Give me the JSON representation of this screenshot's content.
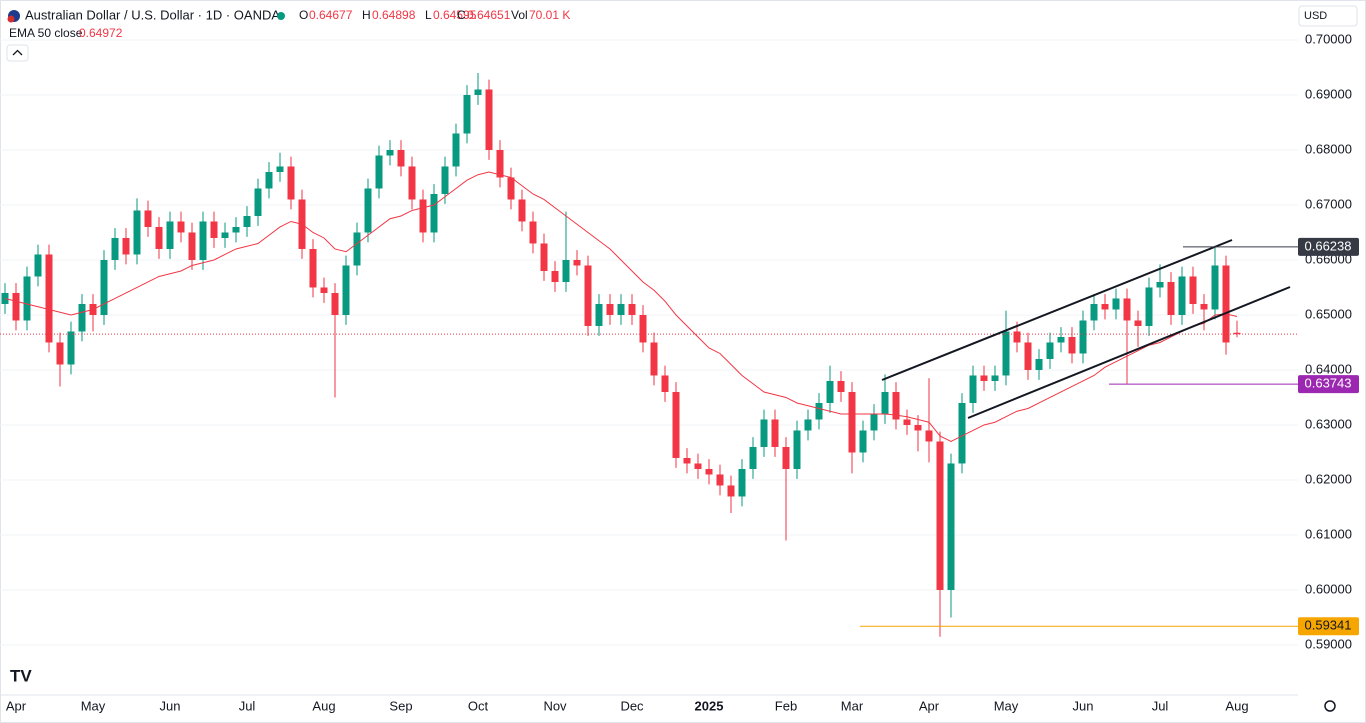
{
  "chart_data": {
    "type": "candlestick",
    "title": "Australian Dollar / U.S. Dollar · 1D · OANDA",
    "currency": "USD",
    "ohlc_labels": {
      "open": "O",
      "high": "H",
      "low": "L",
      "close": "C",
      "volume": "Vol"
    },
    "volume": "70.01 K",
    "up_color": "#089981",
    "down_color": "#f23645",
    "categories": [
      null,
      "Apr",
      null,
      null,
      null,
      null,
      null,
      null,
      "May",
      null,
      null,
      null,
      null,
      null,
      null,
      "Jun",
      null,
      null,
      null,
      null,
      null,
      null,
      "Jul",
      null,
      null,
      null,
      null,
      null,
      null,
      "Aug",
      null,
      null,
      null,
      null,
      null,
      null,
      "Sep",
      null,
      null,
      null,
      null,
      null,
      null,
      "Oct",
      null,
      null,
      null,
      null,
      null,
      null,
      "Nov",
      null,
      null,
      null,
      null,
      null,
      null,
      "Dec",
      null,
      null,
      null,
      null,
      null,
      null,
      "2025",
      null,
      null,
      null,
      null,
      null,
      null,
      "Feb",
      null,
      null,
      null,
      null,
      null,
      "Mar",
      null,
      null,
      null,
      null,
      null,
      null,
      "Apr",
      null,
      null,
      null,
      null,
      null,
      null,
      "May",
      null,
      null,
      null,
      null,
      null,
      null,
      "Jun",
      null,
      null,
      null,
      null,
      null,
      null,
      "Jul",
      null,
      null,
      null,
      null,
      null,
      null,
      "Aug"
    ],
    "open": [
      0.652,
      0.654,
      0.649,
      0.657,
      0.661,
      0.645,
      0.641,
      0.647,
      0.652,
      0.65,
      0.66,
      0.664,
      0.661,
      0.669,
      0.666,
      0.662,
      0.667,
      0.665,
      0.66,
      0.667,
      0.664,
      0.665,
      0.666,
      0.668,
      0.673,
      0.676,
      0.677,
      0.671,
      0.662,
      0.655,
      0.654,
      0.65,
      0.659,
      0.665,
      0.673,
      0.679,
      0.68,
      0.677,
      0.671,
      0.665,
      0.672,
      0.677,
      0.683,
      0.69,
      0.691,
      0.68,
      0.675,
      0.671,
      0.667,
      0.663,
      0.658,
      0.656,
      0.66,
      0.659,
      0.648,
      0.652,
      0.65,
      0.652,
      0.65,
      0.645,
      0.639,
      0.636,
      0.624,
      0.623,
      0.622,
      0.621,
      0.619,
      0.617,
      0.622,
      0.626,
      0.631,
      0.626,
      0.622,
      0.629,
      0.631,
      0.634,
      0.638,
      0.636,
      0.625,
      0.629,
      0.632,
      0.636,
      0.631,
      0.63,
      0.629,
      0.627,
      0.6,
      0.623,
      0.634,
      0.639,
      0.638,
      0.639,
      0.647,
      0.645,
      0.64,
      0.642,
      0.645,
      0.646,
      0.643,
      0.649,
      0.652,
      0.651,
      0.653,
      0.649,
      0.648,
      0.655,
      0.656,
      0.65,
      0.657,
      0.652,
      0.651,
      0.659,
      0.64677
    ],
    "high": [
      0.6558,
      0.6558,
      0.6588,
      0.6628,
      0.6628,
      0.6468,
      0.6488,
      0.6538,
      0.6538,
      0.6618,
      0.6658,
      0.6658,
      0.6712,
      0.6708,
      0.6678,
      0.6688,
      0.6688,
      0.6668,
      0.6688,
      0.6688,
      0.6668,
      0.6678,
      0.6698,
      0.6748,
      0.6778,
      0.6795,
      0.6788,
      0.6728,
      0.6638,
      0.6568,
      0.6558,
      0.6608,
      0.6668,
      0.6748,
      0.6808,
      0.6818,
      0.6818,
      0.6788,
      0.6728,
      0.6738,
      0.6788,
      0.6848,
      0.6918,
      0.694,
      0.6928,
      0.6818,
      0.6768,
      0.6728,
      0.6688,
      0.6648,
      0.6598,
      0.6688,
      0.6618,
      0.6608,
      0.6538,
      0.6538,
      0.6538,
      0.6538,
      0.6518,
      0.6468,
      0.6408,
      0.6378,
      0.6258,
      0.6248,
      0.6238,
      0.6228,
      0.6208,
      0.6238,
      0.6278,
      0.6328,
      0.6328,
      0.6278,
      0.6308,
      0.6328,
      0.6358,
      0.6408,
      0.6398,
      0.6378,
      0.6308,
      0.6338,
      0.6392,
      0.6378,
      0.6328,
      0.6318,
      0.6385,
      0.6288,
      0.6248,
      0.6358,
      0.6408,
      0.6408,
      0.6408,
      0.6508,
      0.6488,
      0.6468,
      0.6438,
      0.6468,
      0.6478,
      0.6478,
      0.6508,
      0.6538,
      0.6538,
      0.6548,
      0.6548,
      0.6508,
      0.6568,
      0.6592,
      0.6578,
      0.6588,
      0.6588,
      0.6538,
      0.6622,
      0.6608,
      0.64898
    ],
    "low": [
      0.6502,
      0.6472,
      0.6472,
      0.6552,
      0.6432,
      0.637,
      0.6392,
      0.6452,
      0.647,
      0.6482,
      0.6582,
      0.6592,
      0.6592,
      0.6642,
      0.6602,
      0.6602,
      0.6632,
      0.6582,
      0.6582,
      0.6622,
      0.6622,
      0.6632,
      0.6642,
      0.6662,
      0.6712,
      0.6742,
      0.6692,
      0.6602,
      0.6532,
      0.6522,
      0.635,
      0.6482,
      0.6572,
      0.6632,
      0.6712,
      0.6772,
      0.6752,
      0.6692,
      0.6632,
      0.6632,
      0.6702,
      0.6752,
      0.6812,
      0.6882,
      0.6782,
      0.6732,
      0.6692,
      0.6652,
      0.6612,
      0.6562,
      0.6542,
      0.6542,
      0.6572,
      0.6462,
      0.6462,
      0.6482,
      0.6482,
      0.6482,
      0.6432,
      0.6372,
      0.6342,
      0.6222,
      0.6212,
      0.6202,
      0.6192,
      0.6172,
      0.614,
      0.6152,
      0.6202,
      0.6242,
      0.6242,
      0.609,
      0.6202,
      0.6272,
      0.6292,
      0.6322,
      0.6342,
      0.6212,
      0.6232,
      0.6272,
      0.6302,
      0.6292,
      0.6282,
      0.6252,
      0.6232,
      0.5915,
      0.595,
      0.6212,
      0.6322,
      0.6362,
      0.6362,
      0.6372,
      0.6432,
      0.6382,
      0.6382,
      0.6402,
      0.6432,
      0.6412,
      0.6412,
      0.6472,
      0.6492,
      0.6492,
      0.6375,
      0.6442,
      0.6462,
      0.6532,
      0.6482,
      0.6482,
      0.6502,
      0.6472,
      0.6492,
      0.6428,
      0.64595
    ],
    "close": [
      0.654,
      0.649,
      0.657,
      0.661,
      0.645,
      0.641,
      0.647,
      0.652,
      0.65,
      0.66,
      0.664,
      0.661,
      0.669,
      0.666,
      0.662,
      0.667,
      0.665,
      0.66,
      0.667,
      0.664,
      0.665,
      0.666,
      0.668,
      0.673,
      0.676,
      0.677,
      0.671,
      0.662,
      0.655,
      0.654,
      0.65,
      0.659,
      0.665,
      0.673,
      0.679,
      0.68,
      0.677,
      0.671,
      0.665,
      0.672,
      0.677,
      0.683,
      0.69,
      0.691,
      0.68,
      0.675,
      0.671,
      0.667,
      0.663,
      0.658,
      0.656,
      0.66,
      0.659,
      0.648,
      0.652,
      0.65,
      0.652,
      0.65,
      0.645,
      0.639,
      0.636,
      0.624,
      0.623,
      0.622,
      0.621,
      0.619,
      0.617,
      0.622,
      0.626,
      0.631,
      0.626,
      0.622,
      0.629,
      0.631,
      0.634,
      0.638,
      0.636,
      0.625,
      0.629,
      0.632,
      0.636,
      0.631,
      0.63,
      0.629,
      0.627,
      0.6,
      0.623,
      0.634,
      0.639,
      0.638,
      0.639,
      0.647,
      0.645,
      0.64,
      0.642,
      0.645,
      0.646,
      0.643,
      0.649,
      0.652,
      0.651,
      0.653,
      0.649,
      0.648,
      0.655,
      0.656,
      0.65,
      0.657,
      0.652,
      0.651,
      0.659,
      0.645,
      0.64651
    ],
    "ema": {
      "name": "EMA 50 close",
      "color": "#f23645",
      "values": [
        0.653,
        0.6525,
        0.652,
        0.6515,
        0.651,
        0.6505,
        0.65,
        0.6505,
        0.651,
        0.652,
        0.653,
        0.654,
        0.655,
        0.656,
        0.657,
        0.6575,
        0.658,
        0.659,
        0.6595,
        0.66,
        0.661,
        0.662,
        0.6625,
        0.663,
        0.6645,
        0.666,
        0.667,
        0.6665,
        0.665,
        0.664,
        0.662,
        0.6615,
        0.663,
        0.6645,
        0.666,
        0.6675,
        0.668,
        0.669,
        0.6695,
        0.67,
        0.6715,
        0.673,
        0.6745,
        0.6755,
        0.676,
        0.6755,
        0.675,
        0.6735,
        0.672,
        0.671,
        0.6695,
        0.668,
        0.6665,
        0.665,
        0.6635,
        0.662,
        0.66,
        0.658,
        0.656,
        0.6545,
        0.6525,
        0.65,
        0.648,
        0.646,
        0.644,
        0.643,
        0.641,
        0.639,
        0.6375,
        0.636,
        0.6355,
        0.635,
        0.634,
        0.6335,
        0.633,
        0.6325,
        0.632,
        0.632,
        0.632,
        0.632,
        0.632,
        0.6318,
        0.6315,
        0.631,
        0.6305,
        0.628,
        0.627,
        0.628,
        0.629,
        0.63,
        0.6305,
        0.6315,
        0.6325,
        0.633,
        0.634,
        0.635,
        0.636,
        0.637,
        0.638,
        0.639,
        0.6405,
        0.6415,
        0.6425,
        0.6435,
        0.6445,
        0.645,
        0.646,
        0.647,
        0.648,
        0.6485,
        0.65,
        0.6502,
        0.64972
      ]
    },
    "levels": [
      {
        "value": 0.66238,
        "color": "#363a45"
      },
      {
        "value": 0.63743,
        "color": "#9c27b0"
      },
      {
        "value": 0.59341,
        "color": "#f7a600"
      }
    ],
    "ylim": [
      0.58636,
      0.70727
    ],
    "yticks": [
      {
        "value": 0.59,
        "label": "0.59000"
      },
      {
        "value": 0.6,
        "label": "0.60000"
      },
      {
        "value": 0.61,
        "label": "0.61000"
      },
      {
        "value": 0.62,
        "label": "0.62000"
      },
      {
        "value": 0.63,
        "label": "0.63000"
      },
      {
        "value": 0.64,
        "label": "0.64000"
      },
      {
        "value": 0.65,
        "label": "0.65000"
      },
      {
        "value": 0.66,
        "label": "0.66000"
      },
      {
        "value": 0.67,
        "label": "0.67000"
      },
      {
        "value": 0.68,
        "label": "0.68000"
      },
      {
        "value": 0.69,
        "label": "0.69000"
      },
      {
        "value": 0.7,
        "label": "0.70000"
      }
    ]
  }
}
